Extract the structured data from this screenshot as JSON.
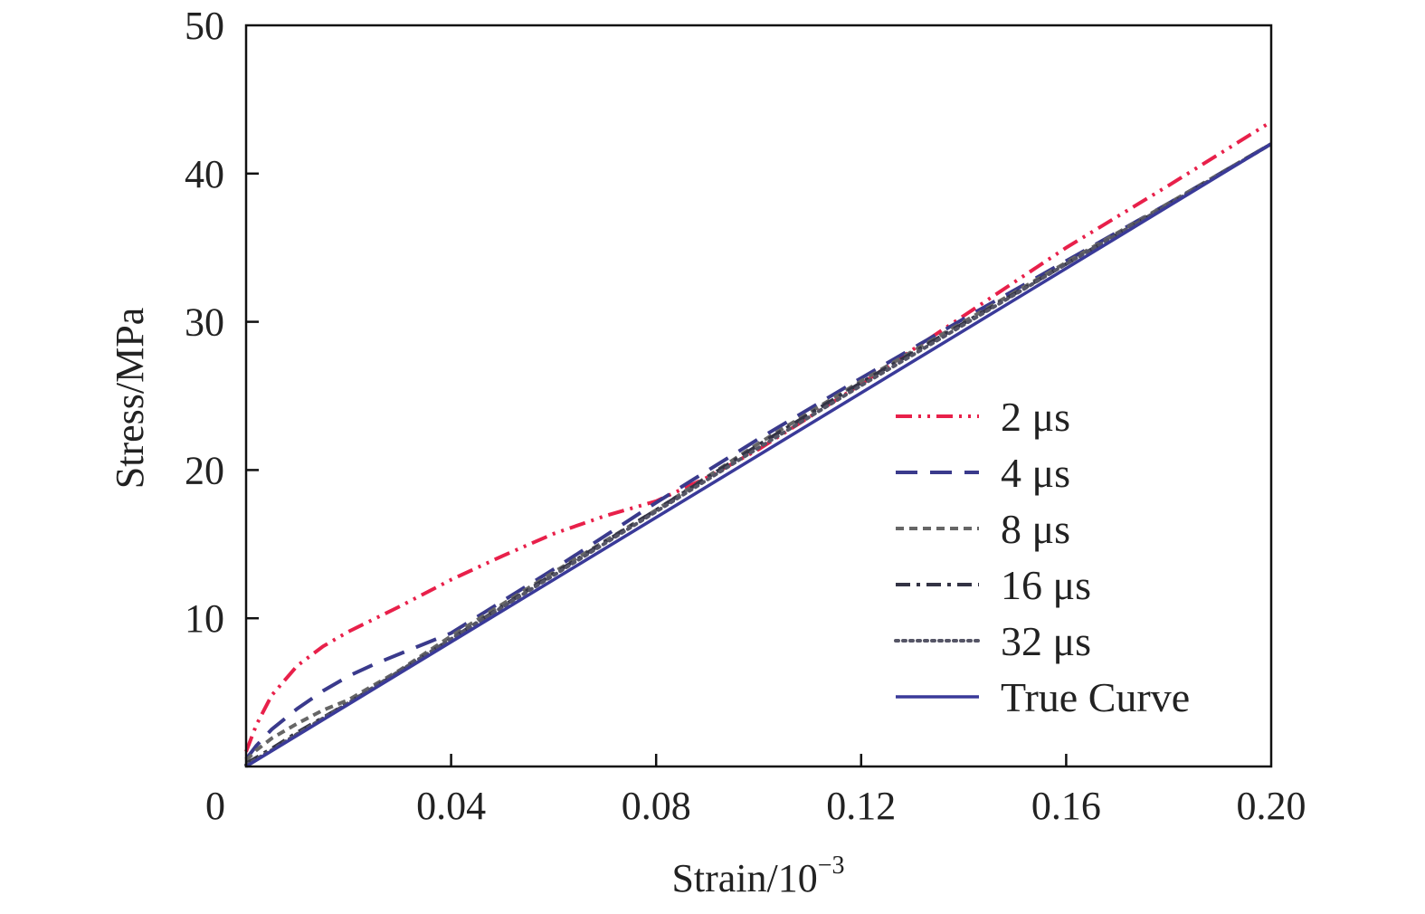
{
  "chart_data": {
    "type": "line",
    "title": "",
    "xlabel": "Strain/10",
    "xlabel_exponent": "−3",
    "ylabel": "Stress/MPa",
    "xlim": [
      0,
      0.2
    ],
    "ylim": [
      0,
      50
    ],
    "xticks": [
      0,
      0.04,
      0.08,
      0.12,
      0.16,
      0.2
    ],
    "xtick_labels": [
      "0",
      "0.04",
      "0.08",
      "0.12",
      "0.16",
      "0.20"
    ],
    "yticks": [
      10,
      20,
      30,
      40,
      50
    ],
    "ytick_labels": [
      "10",
      "20",
      "30",
      "40",
      "50"
    ],
    "grid": false,
    "legend_position": "lower-right",
    "series": [
      {
        "name": "2 μs",
        "color": "#e8204a",
        "style": "dash-dot-dot",
        "x": [
          0,
          0.002,
          0.005,
          0.01,
          0.015,
          0.02,
          0.03,
          0.04,
          0.05,
          0.06,
          0.07,
          0.08,
          0.09,
          0.1,
          0.12,
          0.14,
          0.16,
          0.18,
          0.2
        ],
        "y": [
          1,
          2.8,
          4.8,
          6.8,
          8.1,
          9.1,
          10.8,
          12.6,
          14.2,
          15.7,
          16.9,
          17.9,
          19.5,
          21.4,
          25.8,
          30.4,
          35,
          39.2,
          43.5
        ]
      },
      {
        "name": "4 μs",
        "color": "#3a3a8c",
        "style": "long-dash",
        "x": [
          0,
          0.002,
          0.005,
          0.01,
          0.015,
          0.02,
          0.025,
          0.03,
          0.035,
          0.04,
          0.06,
          0.08,
          0.1,
          0.12,
          0.14,
          0.16,
          0.18,
          0.2
        ],
        "y": [
          0.5,
          1.4,
          2.5,
          3.9,
          5.1,
          6.1,
          6.9,
          7.6,
          8.3,
          9,
          13.3,
          17.8,
          22.1,
          26.2,
          30.2,
          34.1,
          38,
          42
        ]
      },
      {
        "name": "8 μs",
        "color": "#666666",
        "style": "short-dash",
        "x": [
          0,
          0.002,
          0.005,
          0.01,
          0.015,
          0.02,
          0.03,
          0.04,
          0.06,
          0.08,
          0.1,
          0.12,
          0.14,
          0.16,
          0.18,
          0.2
        ],
        "y": [
          0.4,
          1.1,
          1.9,
          2.9,
          3.8,
          4.5,
          6.5,
          8.8,
          13.1,
          17.3,
          21.8,
          26,
          30,
          34,
          38,
          42
        ]
      },
      {
        "name": "16 μs",
        "color": "#333344",
        "style": "dash-dot",
        "x": [
          0,
          0.005,
          0.01,
          0.02,
          0.03,
          0.04,
          0.06,
          0.08,
          0.1,
          0.12,
          0.14,
          0.16,
          0.18,
          0.2
        ],
        "y": [
          0.2,
          1.2,
          2.3,
          4.3,
          6.4,
          8.6,
          13,
          17.3,
          21.7,
          25.9,
          29.9,
          33.9,
          37.9,
          42
        ]
      },
      {
        "name": "32 μs",
        "color": "#555566",
        "style": "dotted",
        "x": [
          0,
          0.005,
          0.01,
          0.02,
          0.04,
          0.06,
          0.08,
          0.1,
          0.12,
          0.14,
          0.16,
          0.18,
          0.2
        ],
        "y": [
          0.1,
          1.1,
          2.2,
          4.3,
          8.6,
          12.9,
          17.2,
          21.5,
          25.7,
          29.8,
          33.9,
          37.9,
          42
        ]
      },
      {
        "name": "True Curve",
        "color": "#3a3a99",
        "style": "solid",
        "x": [
          0,
          0.2
        ],
        "y": [
          0,
          42
        ]
      }
    ]
  }
}
